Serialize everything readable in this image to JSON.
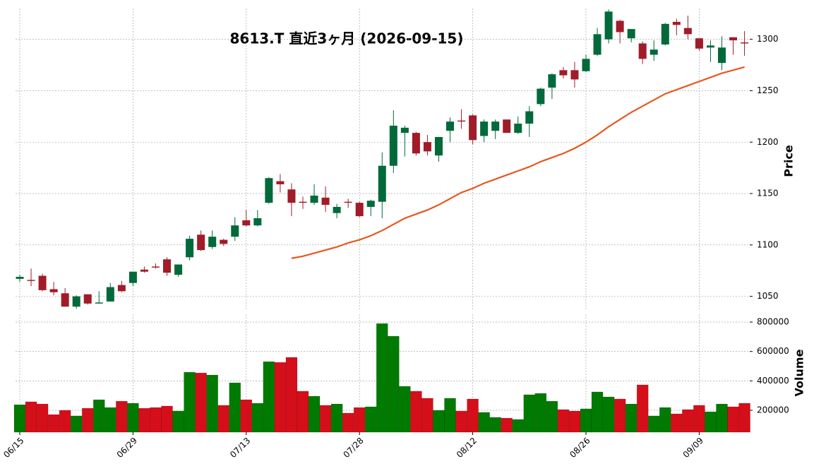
{
  "chart_data": {
    "type": "candlestick",
    "title": "8613.T  直近3ヶ月  (2026-09-15)",
    "ylabel": "Price",
    "ylim": [
      1036,
      1330
    ],
    "yticks": [
      1050,
      1100,
      1150,
      1200,
      1250,
      1300
    ],
    "grid": true,
    "up_color": "#006a3a",
    "down_color": "#a01c28",
    "categories": [
      "06/15",
      null,
      null,
      null,
      null,
      null,
      null,
      null,
      null,
      null,
      "06/29",
      null,
      null,
      null,
      null,
      null,
      null,
      null,
      null,
      null,
      "07/13",
      null,
      null,
      null,
      null,
      null,
      null,
      null,
      null,
      null,
      "07/28",
      null,
      null,
      null,
      null,
      null,
      null,
      null,
      null,
      null,
      "08/12",
      null,
      null,
      null,
      null,
      null,
      null,
      null,
      null,
      null,
      "08/26",
      null,
      null,
      null,
      null,
      null,
      null,
      null,
      null,
      null,
      "09/09",
      null,
      null,
      null,
      null
    ],
    "open": [
      1067,
      1066,
      1070,
      1057,
      1053,
      1040,
      1052,
      1043,
      1045,
      1061,
      1063,
      1076,
      1079,
      1086,
      1071,
      1088,
      1110,
      1098,
      1105,
      1108,
      1124,
      1119,
      1141,
      1162,
      1154,
      1142,
      1141,
      1146,
      1131,
      1142,
      1141,
      1137,
      1142,
      1177,
      1209,
      1209,
      1200,
      1187,
      1211,
      1221,
      1226,
      1206,
      1211,
      1222,
      1209,
      1218,
      1237,
      1253,
      1270,
      1270,
      1269,
      1285,
      1300,
      1318,
      1301,
      1296,
      1285,
      1295,
      1317,
      1311,
      1301,
      1292,
      1277,
      1302,
      1297
    ],
    "high": [
      1071,
      1077,
      1072,
      1064,
      1058,
      1051,
      1052,
      1055,
      1063,
      1065,
      1074,
      1079,
      1082,
      1088,
      1081,
      1109,
      1114,
      1114,
      1106,
      1127,
      1134,
      1134,
      1166,
      1169,
      1160,
      1147,
      1159,
      1157,
      1140,
      1145,
      1142,
      1144,
      1190,
      1231,
      1216,
      1210,
      1207,
      1205,
      1224,
      1232,
      1227,
      1222,
      1222,
      1222,
      1225,
      1235,
      1253,
      1267,
      1273,
      1278,
      1285,
      1311,
      1329,
      1319,
      1310,
      1298,
      1299,
      1316,
      1320,
      1323,
      1301,
      1299,
      1303,
      1302,
      1308
    ],
    "low": [
      1064,
      1060,
      1055,
      1051,
      1040,
      1038,
      1042,
      1043,
      1045,
      1054,
      1060,
      1073,
      1077,
      1070,
      1069,
      1085,
      1094,
      1096,
      1099,
      1104,
      1118,
      1118,
      1140,
      1151,
      1128,
      1135,
      1139,
      1132,
      1126,
      1136,
      1127,
      1128,
      1126,
      1170,
      1186,
      1187,
      1187,
      1181,
      1200,
      1213,
      1198,
      1200,
      1203,
      1209,
      1208,
      1205,
      1235,
      1242,
      1262,
      1253,
      1268,
      1284,
      1296,
      1296,
      1297,
      1276,
      1279,
      1294,
      1304,
      1300,
      1289,
      1278,
      1270,
      1285,
      1284
    ],
    "close": [
      1069,
      1065,
      1056,
      1054,
      1040,
      1050,
      1043,
      1044,
      1059,
      1055,
      1074,
      1074,
      1078,
      1073,
      1081,
      1106,
      1095,
      1108,
      1101,
      1119,
      1119,
      1126,
      1165,
      1159,
      1141,
      1141,
      1148,
      1139,
      1137,
      1141,
      1128,
      1143,
      1177,
      1216,
      1214,
      1189,
      1191,
      1205,
      1220,
      1220,
      1202,
      1220,
      1220,
      1209,
      1218,
      1230,
      1252,
      1266,
      1265,
      1261,
      1281,
      1305,
      1327,
      1307,
      1310,
      1281,
      1290,
      1315,
      1314,
      1305,
      1291,
      1294,
      1292,
      1299,
      1296
    ],
    "ma": {
      "color": "#e8571e",
      "values": [
        null,
        null,
        null,
        null,
        null,
        null,
        null,
        null,
        null,
        null,
        null,
        null,
        null,
        null,
        null,
        null,
        null,
        null,
        null,
        null,
        null,
        null,
        null,
        null,
        1087,
        1089,
        1092,
        1095,
        1098,
        1102,
        1105,
        1109,
        1114,
        1120,
        1126,
        1130,
        1134,
        1139,
        1145,
        1151,
        1155,
        1160,
        1164,
        1168,
        1172,
        1176,
        1181,
        1185,
        1189,
        1194,
        1200,
        1207,
        1215,
        1222,
        1229,
        1235,
        1241,
        1247,
        1251,
        1255,
        1259,
        1263,
        1267,
        1270,
        1273
      ]
    },
    "volume": {
      "ylabel": "Volume",
      "ylim": [
        51000,
        853000
      ],
      "yticks": [
        200000,
        400000,
        600000,
        800000
      ],
      "up_color": "#007a00",
      "down_color": "#d40f1a",
      "values": [
        238000,
        258000,
        243000,
        171000,
        200000,
        162000,
        214000,
        272000,
        219000,
        262000,
        248000,
        214000,
        219000,
        229000,
        195000,
        459000,
        454000,
        440000,
        234000,
        387000,
        272000,
        248000,
        531000,
        526000,
        560000,
        330000,
        296000,
        234000,
        243000,
        181000,
        219000,
        224000,
        790000,
        704000,
        363000,
        330000,
        282000,
        200000,
        282000,
        195000,
        277000,
        186000,
        152000,
        147000,
        138000,
        306000,
        315000,
        262000,
        205000,
        195000,
        210000,
        325000,
        291000,
        277000,
        243000,
        373000,
        162000,
        219000,
        176000,
        205000,
        234000,
        190000,
        243000,
        224000,
        248000
      ]
    }
  }
}
